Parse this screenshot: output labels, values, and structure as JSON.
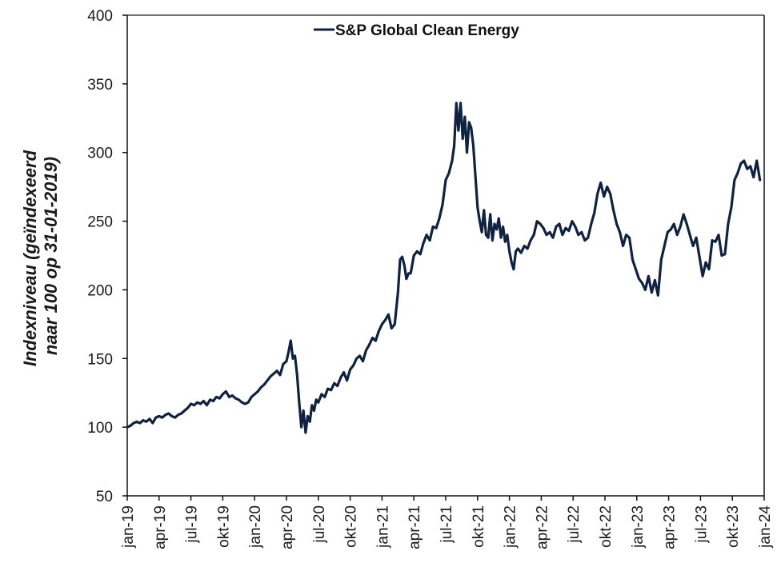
{
  "chart_data": {
    "type": "line",
    "title": "",
    "xlabel": "",
    "ylabel": "Indexniveau (geïndexeerd naar 100 op 31-01-2019)",
    "ylabel_lines": [
      "Indexniveau (geïndexeerd",
      "naar 100 op 31-01-2019)"
    ],
    "ylim": [
      50,
      400
    ],
    "yticks": [
      50,
      100,
      150,
      200,
      250,
      300,
      350,
      400
    ],
    "x_unit": "months since jan-19",
    "xlim": [
      0,
      60
    ],
    "xticks": [
      {
        "pos": 0,
        "label": "jan-19"
      },
      {
        "pos": 3,
        "label": "apr-19"
      },
      {
        "pos": 6,
        "label": "jul-19"
      },
      {
        "pos": 9,
        "label": "okt-19"
      },
      {
        "pos": 12,
        "label": "jan-20"
      },
      {
        "pos": 15,
        "label": "apr-20"
      },
      {
        "pos": 18,
        "label": "jul-20"
      },
      {
        "pos": 21,
        "label": "okt-20"
      },
      {
        "pos": 24,
        "label": "jan-21"
      },
      {
        "pos": 27,
        "label": "apr-21"
      },
      {
        "pos": 30,
        "label": "jul-21"
      },
      {
        "pos": 33,
        "label": "okt-21"
      },
      {
        "pos": 36,
        "label": "jan-22"
      },
      {
        "pos": 39,
        "label": "apr-22"
      },
      {
        "pos": 42,
        "label": "jul-22"
      },
      {
        "pos": 45,
        "label": "okt-22"
      },
      {
        "pos": 48,
        "label": "jan-23"
      },
      {
        "pos": 51,
        "label": "apr-23"
      },
      {
        "pos": 54,
        "label": "jul-23"
      },
      {
        "pos": 57,
        "label": "okt-23"
      },
      {
        "pos": 60,
        "label": "jan-24"
      }
    ],
    "grid": false,
    "legend": {
      "position": "top-center",
      "entries": [
        "S&P Global Clean Energy"
      ]
    },
    "series": [
      {
        "name": "S&P Global Clean Energy",
        "color": "#0f2240",
        "points": [
          [
            0.0,
            100
          ],
          [
            0.3,
            101
          ],
          [
            0.6,
            103
          ],
          [
            0.9,
            104
          ],
          [
            1.2,
            103
          ],
          [
            1.5,
            105
          ],
          [
            1.8,
            104
          ],
          [
            2.1,
            106
          ],
          [
            2.4,
            103
          ],
          [
            2.7,
            107
          ],
          [
            3.0,
            108
          ],
          [
            3.3,
            107
          ],
          [
            3.6,
            109
          ],
          [
            3.9,
            110
          ],
          [
            4.2,
            108
          ],
          [
            4.5,
            107
          ],
          [
            4.8,
            109
          ],
          [
            5.1,
            110
          ],
          [
            5.4,
            112
          ],
          [
            5.7,
            114
          ],
          [
            6.0,
            117
          ],
          [
            6.3,
            116
          ],
          [
            6.6,
            118
          ],
          [
            6.9,
            117
          ],
          [
            7.2,
            119
          ],
          [
            7.5,
            116
          ],
          [
            7.8,
            120
          ],
          [
            8.1,
            119
          ],
          [
            8.4,
            122
          ],
          [
            8.7,
            121
          ],
          [
            9.0,
            124
          ],
          [
            9.3,
            126
          ],
          [
            9.6,
            122
          ],
          [
            9.9,
            123
          ],
          [
            10.2,
            121
          ],
          [
            10.5,
            120
          ],
          [
            10.8,
            118
          ],
          [
            11.1,
            117
          ],
          [
            11.4,
            118
          ],
          [
            11.7,
            122
          ],
          [
            12.0,
            124
          ],
          [
            12.3,
            126
          ],
          [
            12.6,
            129
          ],
          [
            12.9,
            131
          ],
          [
            13.2,
            134
          ],
          [
            13.5,
            137
          ],
          [
            13.8,
            139
          ],
          [
            14.1,
            141
          ],
          [
            14.4,
            138
          ],
          [
            14.7,
            146
          ],
          [
            15.0,
            148
          ],
          [
            15.2,
            155
          ],
          [
            15.4,
            163
          ],
          [
            15.6,
            150
          ],
          [
            15.8,
            152
          ],
          [
            16.0,
            138
          ],
          [
            16.2,
            118
          ],
          [
            16.4,
            100
          ],
          [
            16.6,
            112
          ],
          [
            16.8,
            96
          ],
          [
            17.0,
            108
          ],
          [
            17.2,
            104
          ],
          [
            17.4,
            116
          ],
          [
            17.6,
            112
          ],
          [
            17.8,
            120
          ],
          [
            18.0,
            118
          ],
          [
            18.3,
            124
          ],
          [
            18.6,
            122
          ],
          [
            18.9,
            128
          ],
          [
            19.2,
            127
          ],
          [
            19.5,
            132
          ],
          [
            19.8,
            130
          ],
          [
            20.1,
            136
          ],
          [
            20.4,
            140
          ],
          [
            20.7,
            134
          ],
          [
            21.0,
            142
          ],
          [
            21.3,
            145
          ],
          [
            21.6,
            150
          ],
          [
            21.9,
            152
          ],
          [
            22.2,
            148
          ],
          [
            22.5,
            156
          ],
          [
            22.8,
            160
          ],
          [
            23.1,
            165
          ],
          [
            23.4,
            163
          ],
          [
            23.7,
            170
          ],
          [
            24.0,
            175
          ],
          [
            24.3,
            178
          ],
          [
            24.6,
            182
          ],
          [
            24.9,
            172
          ],
          [
            25.2,
            175
          ],
          [
            25.5,
            198
          ],
          [
            25.7,
            222
          ],
          [
            25.9,
            224
          ],
          [
            26.1,
            218
          ],
          [
            26.3,
            208
          ],
          [
            26.5,
            212
          ],
          [
            26.7,
            212
          ],
          [
            27.0,
            225
          ],
          [
            27.3,
            228
          ],
          [
            27.6,
            226
          ],
          [
            27.9,
            234
          ],
          [
            28.2,
            240
          ],
          [
            28.5,
            236
          ],
          [
            28.8,
            246
          ],
          [
            29.1,
            245
          ],
          [
            29.4,
            252
          ],
          [
            29.7,
            262
          ],
          [
            30.0,
            280
          ],
          [
            30.3,
            285
          ],
          [
            30.6,
            294
          ],
          [
            30.8,
            305
          ],
          [
            31.0,
            336
          ],
          [
            31.2,
            316
          ],
          [
            31.4,
            336
          ],
          [
            31.6,
            310
          ],
          [
            31.8,
            326
          ],
          [
            32.0,
            300
          ],
          [
            32.2,
            322
          ],
          [
            32.4,
            318
          ],
          [
            32.6,
            305
          ],
          [
            32.8,
            283
          ],
          [
            33.0,
            260
          ],
          [
            33.2,
            250
          ],
          [
            33.4,
            242
          ],
          [
            33.6,
            258
          ],
          [
            33.8,
            240
          ],
          [
            34.0,
            238
          ],
          [
            34.2,
            255
          ],
          [
            34.4,
            236
          ],
          [
            34.6,
            248
          ],
          [
            34.8,
            244
          ],
          [
            35.0,
            252
          ],
          [
            35.2,
            238
          ],
          [
            35.4,
            246
          ],
          [
            35.6,
            235
          ],
          [
            35.8,
            240
          ],
          [
            36.0,
            228
          ],
          [
            36.2,
            220
          ],
          [
            36.4,
            215
          ],
          [
            36.6,
            228
          ],
          [
            36.8,
            230
          ],
          [
            37.1,
            227
          ],
          [
            37.4,
            232
          ],
          [
            37.7,
            230
          ],
          [
            38.0,
            236
          ],
          [
            38.3,
            240
          ],
          [
            38.6,
            250
          ],
          [
            38.9,
            248
          ],
          [
            39.2,
            245
          ],
          [
            39.5,
            240
          ],
          [
            39.8,
            242
          ],
          [
            40.1,
            238
          ],
          [
            40.4,
            246
          ],
          [
            40.7,
            248
          ],
          [
            41.0,
            240
          ],
          [
            41.3,
            245
          ],
          [
            41.6,
            243
          ],
          [
            41.9,
            250
          ],
          [
            42.2,
            246
          ],
          [
            42.5,
            240
          ],
          [
            42.8,
            242
          ],
          [
            43.1,
            236
          ],
          [
            43.4,
            238
          ],
          [
            43.7,
            248
          ],
          [
            44.0,
            256
          ],
          [
            44.3,
            270
          ],
          [
            44.6,
            278
          ],
          [
            44.9,
            268
          ],
          [
            45.2,
            275
          ],
          [
            45.5,
            270
          ],
          [
            45.8,
            258
          ],
          [
            46.1,
            248
          ],
          [
            46.4,
            242
          ],
          [
            46.7,
            232
          ],
          [
            47.0,
            240
          ],
          [
            47.3,
            238
          ],
          [
            47.6,
            222
          ],
          [
            47.9,
            215
          ],
          [
            48.2,
            208
          ],
          [
            48.5,
            205
          ],
          [
            48.8,
            200
          ],
          [
            49.1,
            210
          ],
          [
            49.4,
            198
          ],
          [
            49.7,
            207
          ],
          [
            50.0,
            196
          ],
          [
            50.3,
            222
          ],
          [
            50.6,
            232
          ],
          [
            50.9,
            242
          ],
          [
            51.2,
            244
          ],
          [
            51.5,
            248
          ],
          [
            51.8,
            240
          ],
          [
            52.1,
            246
          ],
          [
            52.4,
            255
          ],
          [
            52.7,
            248
          ],
          [
            53.0,
            240
          ],
          [
            53.3,
            232
          ],
          [
            53.6,
            238
          ],
          [
            53.9,
            224
          ],
          [
            54.2,
            210
          ],
          [
            54.5,
            220
          ],
          [
            54.8,
            215
          ],
          [
            55.1,
            236
          ],
          [
            55.4,
            235
          ],
          [
            55.7,
            240
          ],
          [
            56.0,
            225
          ],
          [
            56.3,
            226
          ],
          [
            56.6,
            248
          ],
          [
            56.9,
            260
          ],
          [
            57.2,
            280
          ],
          [
            57.5,
            285
          ],
          [
            57.8,
            292
          ],
          [
            58.1,
            294
          ],
          [
            58.4,
            288
          ],
          [
            58.7,
            290
          ],
          [
            59.0,
            282
          ],
          [
            59.3,
            294
          ],
          [
            59.6,
            280
          ]
        ]
      }
    ]
  }
}
